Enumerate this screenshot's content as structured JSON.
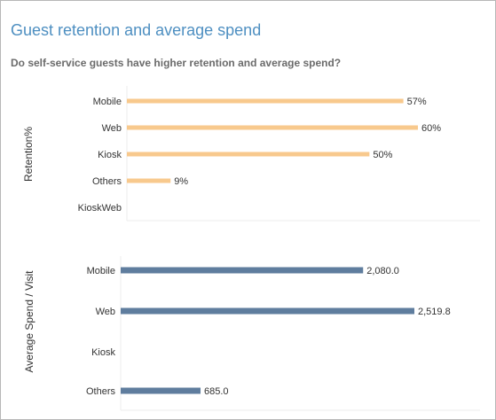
{
  "header": {
    "title": "Guest retention and average spend",
    "subtitle": "Do self-service guests have higher retention and average spend?"
  },
  "colors": {
    "retention_bar": "#f8c98d",
    "spend_bar": "#5f7d9e"
  },
  "chart_data": [
    {
      "type": "bar",
      "orientation": "horizontal",
      "ylabel": "Retention%",
      "categories": [
        "Mobile",
        "Web",
        "Kiosk",
        "Others",
        "KioskWeb"
      ],
      "values": [
        57,
        60,
        50,
        9,
        null
      ],
      "labels": [
        "57%",
        "60%",
        "50%",
        "9%",
        ""
      ],
      "xlim": [
        0,
        60
      ],
      "grid": false
    },
    {
      "type": "bar",
      "orientation": "horizontal",
      "ylabel": "Average Spend / Visit",
      "categories": [
        "Mobile",
        "Web",
        "Kiosk",
        "Others"
      ],
      "values": [
        2080.0,
        2519.8,
        null,
        685.0
      ],
      "labels": [
        "2,080.0",
        "2,519.8",
        "",
        "685.0"
      ],
      "xlim": [
        0,
        2519.8
      ],
      "grid": false
    }
  ]
}
